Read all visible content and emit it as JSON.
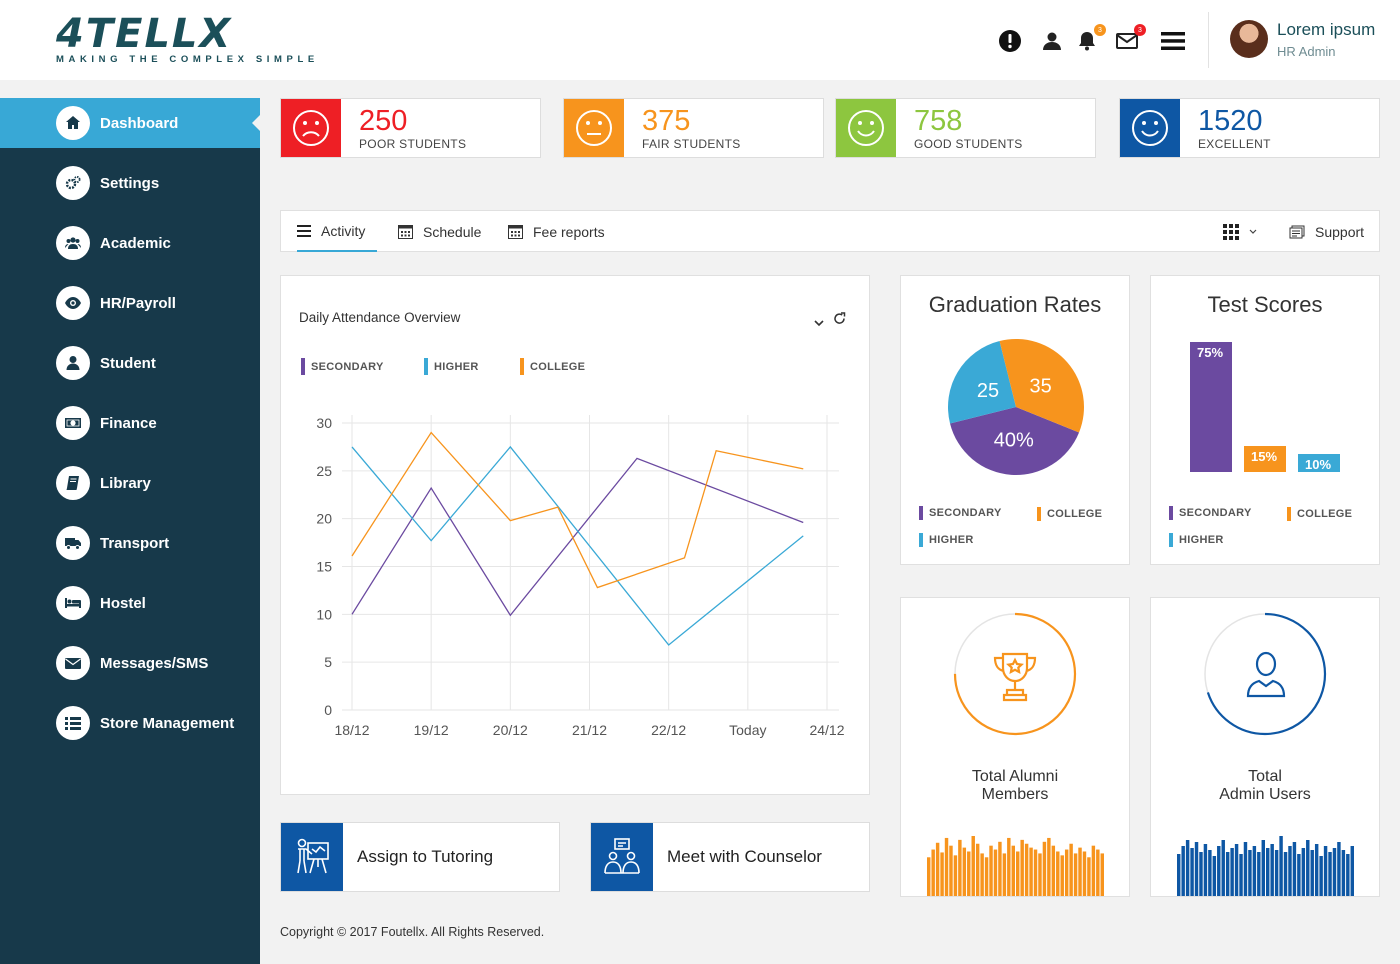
{
  "brand": {
    "logo": "4TELLX",
    "tagline": "MAKING THE COMPLEX SIMPLE"
  },
  "header": {
    "icons": [
      "alert-icon",
      "user-icon",
      "bell-icon",
      "mail-icon",
      "menu-icon"
    ],
    "bell_badge": "3",
    "mail_badge": "3",
    "user_name": "Lorem ipsum",
    "user_role": "HR Admin"
  },
  "sidebar": {
    "items": [
      {
        "label": "Dashboard",
        "icon": "home-icon",
        "active": true
      },
      {
        "label": "Settings",
        "icon": "gears-icon"
      },
      {
        "label": "Academic",
        "icon": "group-icon"
      },
      {
        "label": "HR/Payroll",
        "icon": "eye-icon"
      },
      {
        "label": "Student",
        "icon": "user-icon"
      },
      {
        "label": "Finance",
        "icon": "money-icon"
      },
      {
        "label": "Library",
        "icon": "book-icon"
      },
      {
        "label": "Transport",
        "icon": "truck-icon"
      },
      {
        "label": "Hostel",
        "icon": "bed-icon"
      },
      {
        "label": "Messages/SMS",
        "icon": "envelope-icon"
      },
      {
        "label": "Store Management",
        "icon": "list-icon"
      }
    ]
  },
  "stats": [
    {
      "value": "250",
      "label": "POOR STUDENTS",
      "color": "#ee1f25",
      "face": "sad"
    },
    {
      "value": "375",
      "label": "FAIR STUDENTS",
      "color": "#f7941d",
      "face": "neutral"
    },
    {
      "value": "758",
      "label": "GOOD STUDENTS",
      "color": "#8dc63f",
      "face": "happy"
    },
    {
      "value": "1520",
      "label": "EXCELLENT",
      "color": "#0e57a4",
      "face": "happy"
    }
  ],
  "tabs": {
    "items": [
      {
        "label": "Activity",
        "icon": "menu-icon",
        "active": true
      },
      {
        "label": "Schedule",
        "icon": "calendar-icon"
      },
      {
        "label": "Fee reports",
        "icon": "calendar-icon"
      }
    ],
    "support": "Support"
  },
  "attendance": {
    "title": "Daily Attendance Overview",
    "legend": [
      {
        "name": "SECONDARY",
        "color": "#6b4aa0"
      },
      {
        "name": "HIGHER",
        "color": "#3aa9d6"
      },
      {
        "name": "COLLEGE",
        "color": "#f7941d"
      }
    ]
  },
  "chart_data": [
    {
      "type": "line",
      "title": "Daily Attendance Overview",
      "x": [
        "18/12",
        "19/12",
        "20/12",
        "21/12",
        "22/12",
        "Today",
        "24/12"
      ],
      "x_positions": [
        0,
        1,
        2,
        3,
        4,
        5,
        6
      ],
      "ylim": [
        0,
        30
      ],
      "yticks": [
        0,
        5,
        10,
        15,
        20,
        25,
        30
      ],
      "grid": true,
      "legend_position": "top-left",
      "series": [
        {
          "name": "SECONDARY",
          "color": "#6b4aa0",
          "points": [
            [
              0,
              10
            ],
            [
              1,
              23.2
            ],
            [
              2,
              9.9
            ],
            [
              3.6,
              26.3
            ],
            [
              5.7,
              19.6
            ]
          ]
        },
        {
          "name": "HIGHER",
          "color": "#3aa9d6",
          "points": [
            [
              0,
              27.5
            ],
            [
              1,
              17.7
            ],
            [
              2,
              27.5
            ],
            [
              4,
              6.8
            ],
            [
              5.7,
              18.2
            ]
          ]
        },
        {
          "name": "COLLEGE",
          "color": "#f7941d",
          "points": [
            [
              0,
              16.1
            ],
            [
              1,
              29
            ],
            [
              2,
              19.8
            ],
            [
              2.6,
              21.2
            ],
            [
              3.1,
              12.8
            ],
            [
              4.2,
              15.9
            ],
            [
              4.6,
              27.1
            ],
            [
              5.7,
              25.2
            ]
          ]
        }
      ]
    },
    {
      "type": "pie",
      "title": "Graduation Rates",
      "slices": [
        {
          "label": "40%",
          "value": 40,
          "color": "#6b4aa0"
        },
        {
          "label": "25",
          "value": 25,
          "color": "#3aa9d6"
        },
        {
          "label": "35",
          "value": 35,
          "color": "#f7941d"
        }
      ],
      "legend": [
        {
          "name": "SECONDARY",
          "color": "#6b4aa0"
        },
        {
          "name": "COLLEGE",
          "color": "#f7941d"
        },
        {
          "name": "HIGHER",
          "color": "#3aa9d6"
        }
      ]
    },
    {
      "type": "bar",
      "title": "Test Scores",
      "categories": [
        "SECONDARY",
        "COLLEGE",
        "HIGHER"
      ],
      "values": [
        75,
        15,
        10
      ],
      "labels": [
        "75%",
        "15%",
        "10%"
      ],
      "colors": [
        "#6b4aa0",
        "#f7941d",
        "#3aa9d6"
      ],
      "legend": [
        {
          "name": "SECONDARY",
          "color": "#6b4aa0"
        },
        {
          "name": "COLLEGE",
          "color": "#f7941d"
        },
        {
          "name": "HIGHER",
          "color": "#3aa9d6"
        }
      ]
    }
  ],
  "alumni": {
    "line1": "Total Alumni",
    "line2": "Members",
    "color": "#f7941d",
    "progress": 0.75,
    "bars": [
      40,
      48,
      55,
      45,
      60,
      52,
      42,
      58,
      50,
      46,
      62,
      54,
      44,
      40,
      52,
      48,
      56,
      44,
      60,
      52,
      46,
      58,
      54,
      50,
      48,
      44,
      56,
      60,
      52,
      46,
      42,
      48,
      54,
      44,
      50,
      46,
      40,
      52,
      48,
      44
    ]
  },
  "admins": {
    "line1": "Total",
    "line2": "Admin Users",
    "color": "#0e57a4",
    "progress": 0.7,
    "bars": [
      42,
      50,
      56,
      48,
      54,
      44,
      52,
      46,
      40,
      50,
      56,
      44,
      48,
      52,
      42,
      54,
      46,
      50,
      44,
      56,
      48,
      52,
      46,
      60,
      44,
      50,
      54,
      42,
      48,
      56,
      46,
      52,
      40,
      50,
      44,
      48,
      54,
      46,
      42,
      50
    ]
  },
  "actions": [
    {
      "label": "Assign to Tutoring",
      "icon": "teacher-board-icon"
    },
    {
      "label": "Meet with Counselor",
      "icon": "counselor-icon"
    }
  ],
  "footer": "Copyright © 2017 Foutellx.  All Rights Reserved."
}
